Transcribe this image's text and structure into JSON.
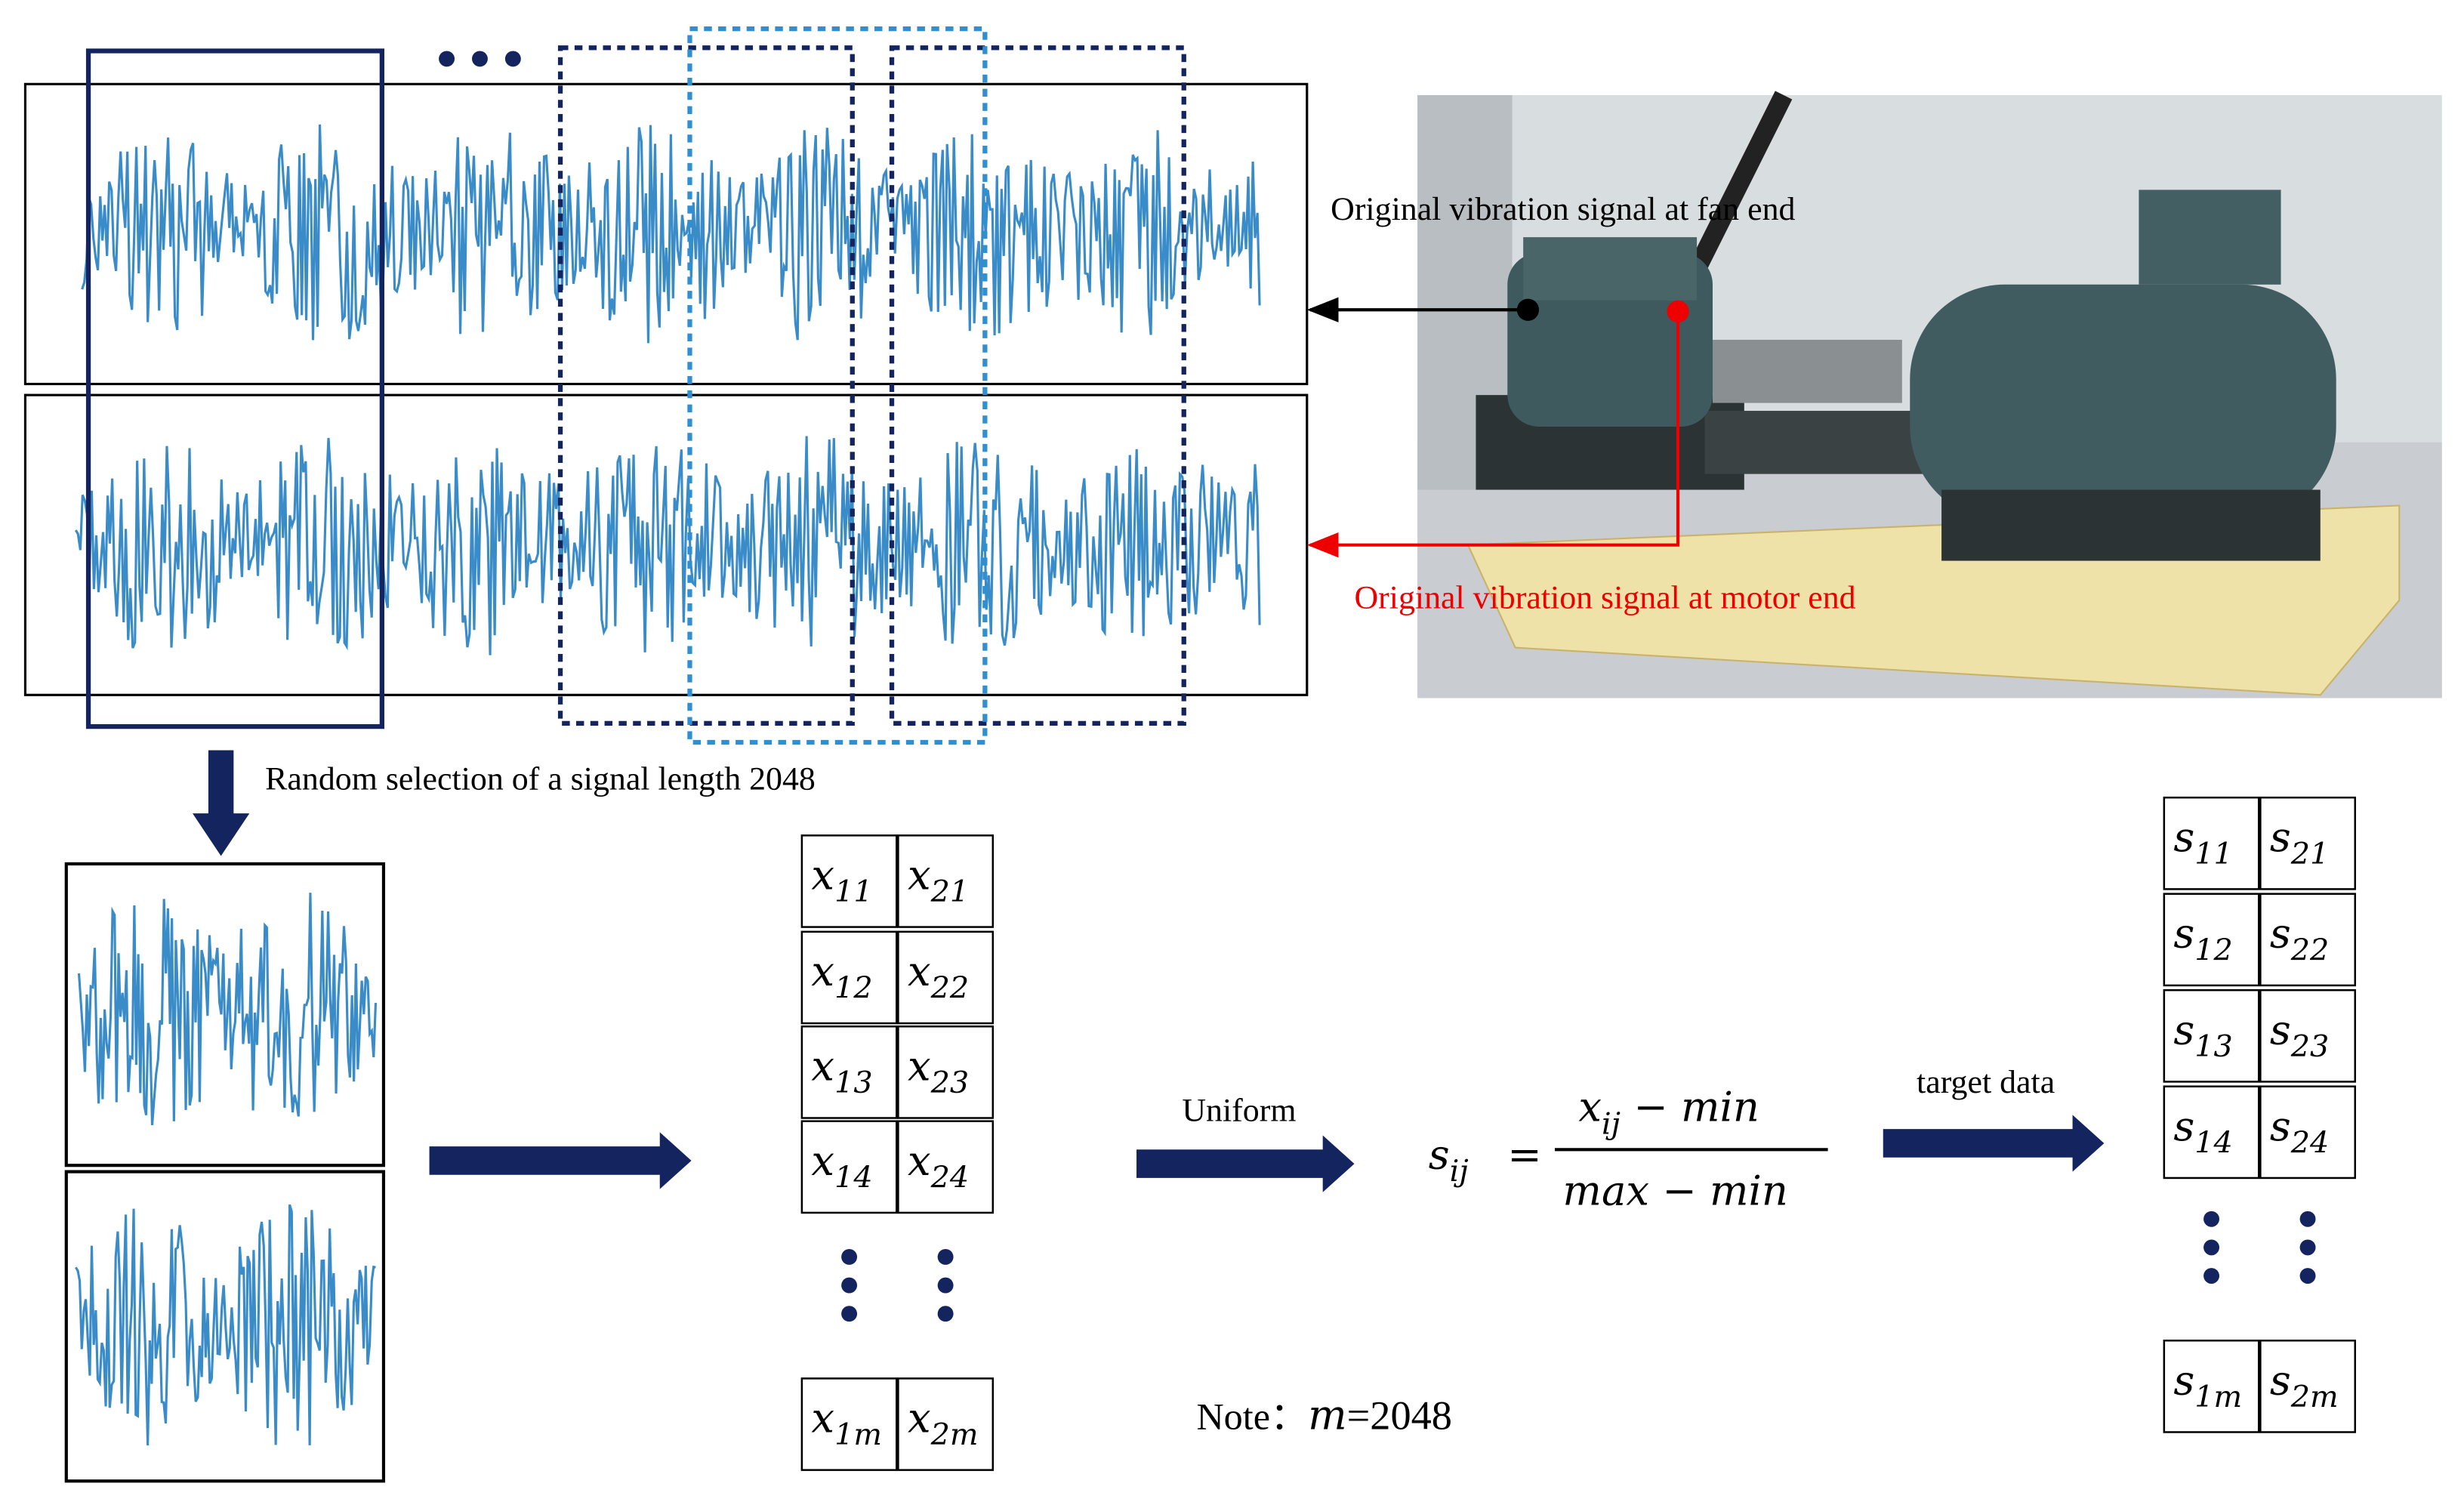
{
  "labels": {
    "fan_end": "Original vibration signal at fan end",
    "motor_end": "Original vibration signal at motor end",
    "selection": "Random selection of a signal length 2048",
    "uniform": "Uniform",
    "target": "target data"
  },
  "x_matrix": [
    [
      {
        "base": "x",
        "sub": "11"
      },
      {
        "base": "x",
        "sub": "21"
      }
    ],
    [
      {
        "base": "x",
        "sub": "12"
      },
      {
        "base": "x",
        "sub": "22"
      }
    ],
    [
      {
        "base": "x",
        "sub": "13"
      },
      {
        "base": "x",
        "sub": "23"
      }
    ],
    [
      {
        "base": "x",
        "sub": "14"
      },
      {
        "base": "x",
        "sub": "24"
      }
    ],
    [
      {
        "base": "x",
        "sub": "1m"
      },
      {
        "base": "x",
        "sub": "2m"
      }
    ]
  ],
  "s_matrix": [
    [
      {
        "base": "s",
        "sub": "11"
      },
      {
        "base": "s",
        "sub": "21"
      }
    ],
    [
      {
        "base": "s",
        "sub": "12"
      },
      {
        "base": "s",
        "sub": "22"
      }
    ],
    [
      {
        "base": "s",
        "sub": "13"
      },
      {
        "base": "s",
        "sub": "23"
      }
    ],
    [
      {
        "base": "s",
        "sub": "14"
      },
      {
        "base": "s",
        "sub": "24"
      }
    ],
    [
      {
        "base": "s",
        "sub": "1m"
      },
      {
        "base": "s",
        "sub": "2m"
      }
    ]
  ],
  "formula": {
    "lhs": {
      "base": "s",
      "sub": "ij"
    },
    "equals": "=",
    "numerator": {
      "base": "x",
      "sub": "ij",
      "rest": " − min"
    },
    "denominator": "max − min"
  },
  "note": {
    "label": "Note：",
    "variable": "m",
    "value": "=2048"
  }
}
